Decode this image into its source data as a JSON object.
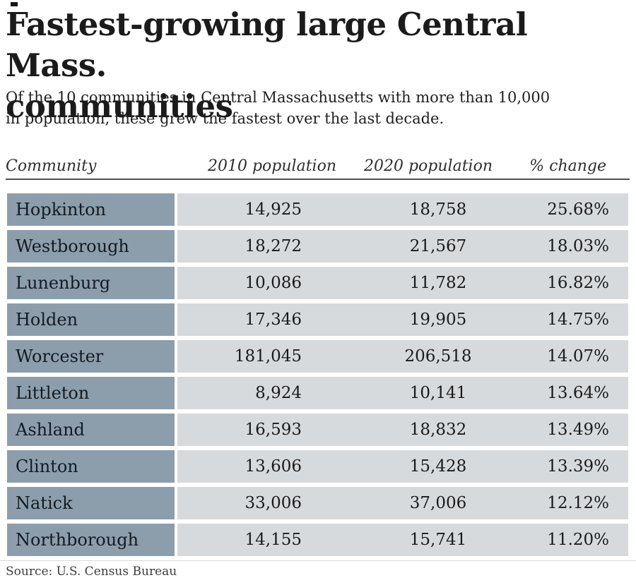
{
  "title_line1": "Fastest-growing large Central Mass.",
  "title_line2": "communities",
  "subtitle_line1": "Of the 10 communities in Central Massachusetts with more than 10,000",
  "subtitle_line2": "in population, these grew the fastest over the last decade.",
  "source": "Source: U.S. Census Bureau",
  "colors": {
    "community_cell": "#8c9eac",
    "data_cell": "#d7dadd",
    "header_rule": "#4f4f4f",
    "text": "#1a1a1a"
  },
  "table": {
    "columns": [
      "Community",
      "2010 population",
      "2020 population",
      "% change"
    ],
    "rows": [
      {
        "community": "Hopkinton",
        "pop2010": "14,925",
        "pop2020": "18,758",
        "pct": "25.68%"
      },
      {
        "community": "Westborough",
        "pop2010": "18,272",
        "pop2020": "21,567",
        "pct": "18.03%"
      },
      {
        "community": "Lunenburg",
        "pop2010": "10,086",
        "pop2020": "11,782",
        "pct": "16.82%"
      },
      {
        "community": "Holden",
        "pop2010": "17,346",
        "pop2020": "19,905",
        "pct": "14.75%"
      },
      {
        "community": "Worcester",
        "pop2010": "181,045",
        "pop2020": "206,518",
        "pct": "14.07%"
      },
      {
        "community": "Littleton",
        "pop2010": "8,924",
        "pop2020": "10,141",
        "pct": "13.64%"
      },
      {
        "community": "Ashland",
        "pop2010": "16,593",
        "pop2020": "18,832",
        "pct": "13.49%"
      },
      {
        "community": "Clinton",
        "pop2010": "13,606",
        "pop2020": "15,428",
        "pct": "13.39%"
      },
      {
        "community": "Natick",
        "pop2010": "33,006",
        "pop2020": "37,006",
        "pct": "12.12%"
      },
      {
        "community": "Northborough",
        "pop2010": "14,155",
        "pop2020": "15,741",
        "pct": "11.20%"
      }
    ]
  },
  "chart_data": {
    "type": "table",
    "title": "Fastest-growing large Central Mass. communities",
    "subtitle": "Of the 10 communities in Central Massachusetts with more than 10,000 in population, these grew the fastest over the last decade.",
    "columns": [
      "Community",
      "2010 population",
      "2020 population",
      "% change"
    ],
    "categories": [
      "Hopkinton",
      "Westborough",
      "Lunenburg",
      "Holden",
      "Worcester",
      "Littleton",
      "Ashland",
      "Clinton",
      "Natick",
      "Northborough"
    ],
    "series": [
      {
        "name": "2010 population",
        "values": [
          14925,
          18272,
          10086,
          17346,
          181045,
          8924,
          16593,
          13606,
          33006,
          14155
        ]
      },
      {
        "name": "2020 population",
        "values": [
          18758,
          21567,
          11782,
          19905,
          206518,
          10141,
          18832,
          15428,
          37006,
          15741
        ]
      },
      {
        "name": "% change",
        "values": [
          25.68,
          18.03,
          16.82,
          14.75,
          14.07,
          13.64,
          13.49,
          13.39,
          12.12,
          11.2
        ]
      }
    ],
    "source": "Source: U.S. Census Bureau"
  }
}
